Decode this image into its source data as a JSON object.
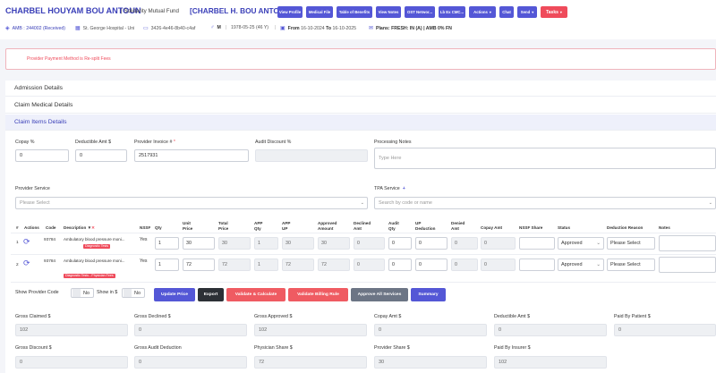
{
  "header": {
    "patient_name": "CHARBEL HOUYAM BOU ANTOUN",
    "fund": "| Solidarity Mutual Fund",
    "alias": "[CHARBEL H. BOU ANTOUN]",
    "buttons": [
      "View Profile",
      "Medical File",
      "Table of Benefits",
      "View Notes",
      "OST Networ...",
      "Lb Ex CMC...",
      "Actions",
      "Chat",
      "Send",
      "Tasks"
    ],
    "meta": {
      "claim_no": "AMB : 244002 (Received)",
      "hospital": "St. George Hospital - Uni",
      "card_id": "3426-4e46-8b40-c4af",
      "gender": "M",
      "dob": "1978-05-25 (46 Y)",
      "from_label": "From",
      "from_date": "16-10-2024",
      "to_label": "To",
      "to_date": "16-10-2025",
      "plans_label": "Plans:",
      "plans": "FRESH: IN (A) | AMB 0% FN"
    }
  },
  "alert": {
    "text": "Provider Payment Method is Re-split Fees"
  },
  "sections": {
    "admission": "Admission Details",
    "medical": "Claim Medical Details",
    "items": "Claim Items Details"
  },
  "form": {
    "copay_label": "Copay %",
    "copay_value": "0",
    "deductible_label": "Deductible Amt $",
    "deductible_value": "0",
    "invoice_label": "Provider Invoice #",
    "invoice_req": "*",
    "invoice_value": "2517931",
    "audit_discount_label": "Audit Discount %",
    "audit_discount_value": "",
    "processing_label": "Processing Notes",
    "processing_placeholder": "Type Here",
    "provider_service_label": "Provider Service",
    "provider_service_placeholder": "Please Select",
    "tpa_label": "TPA Service",
    "tpa_add": "+",
    "tpa_placeholder": "Search by code or name"
  },
  "table": {
    "headers": {
      "num": "#",
      "actions": "Actions",
      "code": "Code",
      "description": "Description",
      "nssf": "NSSF",
      "qty": "Qty",
      "unit_price": [
        "Unit",
        "Price"
      ],
      "total_price": [
        "Total",
        "Price"
      ],
      "app_qty": [
        "APP",
        "Qty"
      ],
      "app_up": [
        "APP",
        "UP"
      ],
      "approved_amount": [
        "Approved",
        "Amount"
      ],
      "declined_amt": [
        "Declined",
        "Amt"
      ],
      "audit_qty": [
        "Audit",
        "Qty"
      ],
      "up_deduction": [
        "UP",
        "Deduction"
      ],
      "denied_amt": [
        "Denied",
        "Amt"
      ],
      "copay_amt": "Copay Amt",
      "nssf_share": "NSSF Share",
      "status": "Status",
      "deduction_reason": "Deduction Reason",
      "notes": "Notes"
    },
    "rows": [
      {
        "num": "1",
        "code": "93784",
        "description": "Ambulatory blood pressure moni...",
        "tags": [
          "Diagnostic Tests"
        ],
        "nssf": "Yes",
        "qty": "1",
        "unit_price": "30",
        "total_price": "30",
        "app_qty": "1",
        "app_up": "30",
        "approved_amount": "30",
        "declined_amt": "0",
        "audit_qty": "0",
        "up_deduction": "0",
        "denied_amt": "0",
        "copay_amt": "0",
        "nssf_share": "",
        "status": "Approved",
        "deduction_reason": "Please Select"
      },
      {
        "num": "2",
        "code": "93784",
        "description": "Ambulatory blood pressure moni...",
        "tags": [
          "Diagnostic Tests - Physician Fees"
        ],
        "nssf": "Yes",
        "qty": "1",
        "unit_price": "72",
        "total_price": "72",
        "app_qty": "1",
        "app_up": "72",
        "approved_amount": "72",
        "declined_amt": "0",
        "audit_qty": "0",
        "up_deduction": "0",
        "denied_amt": "0",
        "copay_amt": "0",
        "nssf_share": "",
        "status": "Approved",
        "deduction_reason": "Please Select"
      }
    ]
  },
  "controls": {
    "show_provider_code": "Show Provider Code",
    "show_provider_code_value": "No",
    "show_in_usd": "Show in $",
    "show_in_usd_value": "No",
    "buttons": [
      "Update Price",
      "Export",
      "Validate & Calculate",
      "Validate Billing Rule",
      "Approve All Services",
      "Summary"
    ]
  },
  "totals": {
    "gross_claimed": {
      "label": "Gross Claimed $",
      "value": "102"
    },
    "gross_declined": {
      "label": "Gross Declined $",
      "value": "0"
    },
    "gross_approved": {
      "label": "Gross Approved $",
      "value": "102"
    },
    "copay_amt": {
      "label": "Copay Amt $",
      "value": "0"
    },
    "deductible_amt": {
      "label": "Deductible Amt $",
      "value": "0"
    },
    "paid_by_patient": {
      "label": "Paid By Patient $",
      "value": "0"
    },
    "gross_discount": {
      "label": "Gross Discount $",
      "value": "0"
    },
    "gross_audit_deduction": {
      "label": "Gross Audit Deduction",
      "value": "0"
    },
    "physician_share": {
      "label": "Physician Share $",
      "value": "72"
    },
    "provider_share": {
      "label": "Provider Share $",
      "value": "30"
    },
    "paid_by_insurer": {
      "label": "Paid By Insurer $",
      "value": "102"
    }
  },
  "colors": {
    "accent": "#5457d6",
    "danger": "#ef4b5b",
    "title": "#3a3fb8"
  },
  "icons": [
    "location-pin-icon",
    "hospital-icon",
    "card-icon",
    "gender-icon",
    "calendar-icon",
    "plans-icon",
    "refresh-icon",
    "filter-icon",
    "clear-filter-icon",
    "chevron-down-icon",
    "alert-icon"
  ]
}
